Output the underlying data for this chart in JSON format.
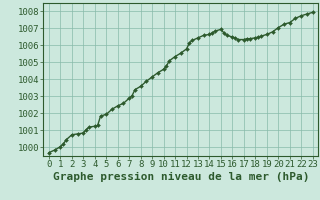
{
  "title": "Graphe pression niveau de la mer (hPa)",
  "background_color": "#cce8dd",
  "plot_bg_color": "#cce8dd",
  "line_color": "#2d5a2d",
  "marker_color": "#2d5a2d",
  "grid_color": "#88bbaa",
  "border_color": "#2d5a2d",
  "xlim": [
    -0.5,
    23.5
  ],
  "ylim": [
    999.5,
    1008.5
  ],
  "yticks": [
    1000,
    1001,
    1002,
    1003,
    1004,
    1005,
    1006,
    1007,
    1008
  ],
  "xticks": [
    0,
    1,
    2,
    3,
    4,
    5,
    6,
    7,
    8,
    9,
    10,
    11,
    12,
    13,
    14,
    15,
    16,
    17,
    18,
    19,
    20,
    21,
    22,
    23
  ],
  "x": [
    0,
    0.5,
    1,
    1.25,
    1.5,
    2,
    2.5,
    3,
    3.25,
    3.5,
    4,
    4.25,
    4.5,
    5,
    5.5,
    6,
    6.5,
    7,
    7.25,
    7.5,
    8,
    8.5,
    9,
    9.5,
    10,
    10.25,
    10.5,
    11,
    11.5,
    12,
    12.25,
    12.5,
    13,
    13.5,
    14,
    14.25,
    14.5,
    15,
    15.25,
    15.5,
    16,
    16.25,
    16.5,
    17,
    17.25,
    17.5,
    18,
    18.25,
    18.5,
    19,
    19.5,
    20,
    20.5,
    21,
    21.5,
    22,
    22.5,
    23
  ],
  "y": [
    999.7,
    999.85,
    1000.05,
    1000.2,
    1000.45,
    1000.75,
    1000.8,
    1000.85,
    1001.05,
    1001.2,
    1001.25,
    1001.3,
    1001.85,
    1001.95,
    1002.25,
    1002.45,
    1002.6,
    1002.9,
    1003.05,
    1003.4,
    1003.6,
    1003.9,
    1004.15,
    1004.4,
    1004.6,
    1004.8,
    1005.1,
    1005.35,
    1005.55,
    1005.8,
    1006.15,
    1006.3,
    1006.45,
    1006.6,
    1006.65,
    1006.75,
    1006.85,
    1006.95,
    1006.75,
    1006.6,
    1006.5,
    1006.45,
    1006.35,
    1006.35,
    1006.4,
    1006.4,
    1006.45,
    1006.5,
    1006.55,
    1006.65,
    1006.8,
    1007.05,
    1007.25,
    1007.35,
    1007.6,
    1007.75,
    1007.85,
    1007.95
  ],
  "title_fontsize": 8,
  "tick_fontsize": 6.5,
  "linewidth": 1.0,
  "markersize": 2.0
}
